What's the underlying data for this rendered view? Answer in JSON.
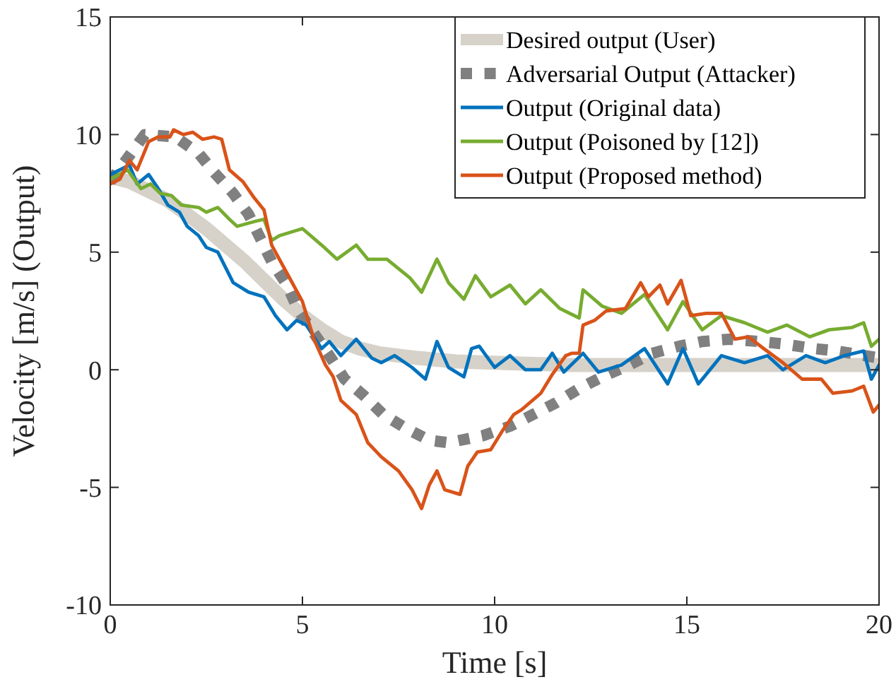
{
  "chart_data": {
    "type": "line",
    "xlabel": "Time [s]",
    "ylabel": "Velocity [m/s] (Output)",
    "xlim": [
      0,
      20
    ],
    "ylim": [
      -10,
      15
    ],
    "xticks": [
      0,
      5,
      10,
      15,
      20
    ],
    "yticks": [
      -10,
      -5,
      0,
      5,
      10,
      15
    ],
    "grid": false,
    "legend": "top right",
    "series": [
      {
        "name": "Desired output (User)",
        "color": "#d6d2c9",
        "line_style": "solid",
        "x": [
          0,
          0.5,
          1,
          1.5,
          2,
          2.5,
          3,
          3.5,
          4,
          4.5,
          5,
          5.5,
          6,
          6.5,
          7,
          8,
          9,
          10,
          12,
          14,
          16,
          18,
          20
        ],
        "values": [
          8.2,
          8.0,
          7.6,
          7.2,
          6.6,
          6.0,
          5.3,
          4.6,
          3.8,
          3.0,
          2.3,
          1.7,
          1.2,
          0.9,
          0.7,
          0.5,
          0.35,
          0.3,
          0.2,
          0.2,
          0.2,
          0.2,
          0.2
        ]
      },
      {
        "name": "Adversarial Output (Attacker)",
        "color": "#808080",
        "line_style": "dotted",
        "x": [
          0,
          0.9,
          1.7,
          2.3,
          2.7,
          3.2,
          3.6,
          3.9,
          4.2,
          4.6,
          4.9,
          5.7,
          6.1,
          6.6,
          7.1,
          7.7,
          8.3,
          8.8,
          9.7,
          10.4,
          11,
          11.6,
          12.2,
          12.8,
          13.5,
          14.1,
          14.8,
          15.4,
          16.1,
          16.9,
          17.5,
          18.3,
          18.9,
          20
        ],
        "values": [
          8.0,
          10,
          9.9,
          9.2,
          8.4,
          7.5,
          6.6,
          5.6,
          4.6,
          3.6,
          2.5,
          0.6,
          -0.4,
          -1.1,
          -1.9,
          -2.5,
          -3.0,
          -3.1,
          -2.8,
          -2.4,
          -1.9,
          -1.4,
          -0.8,
          -0.3,
          0.2,
          0.7,
          1.0,
          1.2,
          1.3,
          1.2,
          1.1,
          0.9,
          0.8,
          0.5
        ]
      },
      {
        "name": "Output (Original data)",
        "color": "#0072bd",
        "line_style": "solid",
        "x": [
          0,
          0.5,
          0.7,
          1.0,
          1.25,
          1.5,
          1.8,
          2.0,
          2.3,
          2.5,
          2.8,
          3.2,
          3.6,
          4.0,
          4.3,
          4.6,
          4.85,
          5.1,
          5.5,
          5.7,
          6.0,
          6.4,
          6.8,
          7.05,
          7.4,
          7.85,
          8.2,
          8.5,
          8.8,
          9.2,
          9.4,
          9.6,
          10.0,
          10.4,
          10.8,
          11.2,
          11.5,
          11.8,
          12.3,
          12.7,
          13.3,
          13.9,
          14.5,
          14.9,
          15.3,
          15.9,
          16.5,
          17.1,
          17.5,
          18.1,
          18.6,
          19.1,
          19.6,
          19.8,
          20
        ],
        "values": [
          8.3,
          8.7,
          7.9,
          8.3,
          7.7,
          7.0,
          6.7,
          6.1,
          5.7,
          5.2,
          5.0,
          3.7,
          3.3,
          3.1,
          2.3,
          1.7,
          2.1,
          1.9,
          0.9,
          1.2,
          0.6,
          1.3,
          0.5,
          0.3,
          0.6,
          0.1,
          -0.4,
          1.2,
          0.1,
          -0.3,
          0.9,
          1.0,
          0.1,
          0.6,
          0,
          0,
          0.7,
          -0.1,
          0.7,
          -0.1,
          0.2,
          0.9,
          -0.6,
          0.9,
          -0.6,
          0.6,
          0.3,
          0.6,
          0,
          0.6,
          0.3,
          0.6,
          0.8,
          -0.4,
          0.2
        ]
      },
      {
        "name": "Output (Poisoned by [12])",
        "color": "#77ac30",
        "line_style": "solid",
        "x": [
          0,
          0.45,
          0.8,
          1.05,
          1.3,
          1.6,
          1.85,
          2.3,
          2.5,
          2.8,
          3.1,
          3.3,
          3.75,
          4.0,
          4.2,
          4.4,
          5.0,
          5.5,
          5.9,
          6.4,
          6.7,
          7.2,
          7.8,
          8.1,
          8.5,
          8.8,
          9.2,
          9.5,
          9.9,
          10.4,
          10.8,
          11.2,
          11.7,
          12.2,
          12.3,
          12.8,
          13.3,
          13.9,
          14.5,
          14.9,
          15.4,
          15.9,
          16.5,
          17.1,
          17.6,
          18.2,
          18.7,
          19.3,
          19.6,
          19.8,
          20
        ],
        "values": [
          8.1,
          8.5,
          7.7,
          7.9,
          7.5,
          7.4,
          7.0,
          6.9,
          6.7,
          6.9,
          6.4,
          6.1,
          6.3,
          6.4,
          5.5,
          5.7,
          6.0,
          5.3,
          4.7,
          5.3,
          4.7,
          4.7,
          3.9,
          3.3,
          4.7,
          3.7,
          3.0,
          4.0,
          3.1,
          3.6,
          2.8,
          3.4,
          2.6,
          2.2,
          3.4,
          2.7,
          2.4,
          3.2,
          1.7,
          2.9,
          1.7,
          2.3,
          2.0,
          1.6,
          1.9,
          1.4,
          1.7,
          1.8,
          2.0,
          1.0,
          1.3
        ]
      },
      {
        "name": "Output (Proposed method)",
        "color": "#d95319",
        "line_style": "solid",
        "x": [
          0,
          0.25,
          0.5,
          0.7,
          1.0,
          1.25,
          1.55,
          1.65,
          1.9,
          2.15,
          2.4,
          2.7,
          2.9,
          3.1,
          3.45,
          3.75,
          4.0,
          4.2,
          4.6,
          5.0,
          5.3,
          5.6,
          5.8,
          6.0,
          6.4,
          6.7,
          7.05,
          7.5,
          7.85,
          8.1,
          8.3,
          8.5,
          8.7,
          9.1,
          9.3,
          9.55,
          9.9,
          10.2,
          10.5,
          10.7,
          11.2,
          11.5,
          11.85,
          12.0,
          12.2,
          12.3,
          12.6,
          12.9,
          13.4,
          13.8,
          14.0,
          14.3,
          14.5,
          14.85,
          15.1,
          15.5,
          15.9,
          16.25,
          16.6,
          17.0,
          17.5,
          18.0,
          18.5,
          18.8,
          19.3,
          19.6,
          19.85,
          20
        ],
        "values": [
          7.9,
          8.1,
          8.9,
          8.5,
          9.7,
          9.9,
          9.9,
          10.2,
          10.0,
          10.1,
          9.8,
          9.9,
          9.8,
          8.5,
          8.0,
          7.3,
          6.8,
          5.3,
          4.1,
          2.9,
          1.3,
          0.2,
          -0.3,
          -1.3,
          -1.9,
          -3.1,
          -3.7,
          -4.3,
          -5.1,
          -5.9,
          -4.9,
          -4.3,
          -5.1,
          -5.3,
          -4.1,
          -3.5,
          -3.4,
          -2.6,
          -1.9,
          -1.7,
          -1.0,
          -0.2,
          0.6,
          0.7,
          0.7,
          1.9,
          2.1,
          2.5,
          2.6,
          3.7,
          3.1,
          3.6,
          2.8,
          3.8,
          2.3,
          2.4,
          2.4,
          1.3,
          1.4,
          0.9,
          0.3,
          -0.4,
          -0.4,
          -1.0,
          -0.9,
          -0.7,
          -1.8,
          -1.5
        ]
      }
    ]
  }
}
